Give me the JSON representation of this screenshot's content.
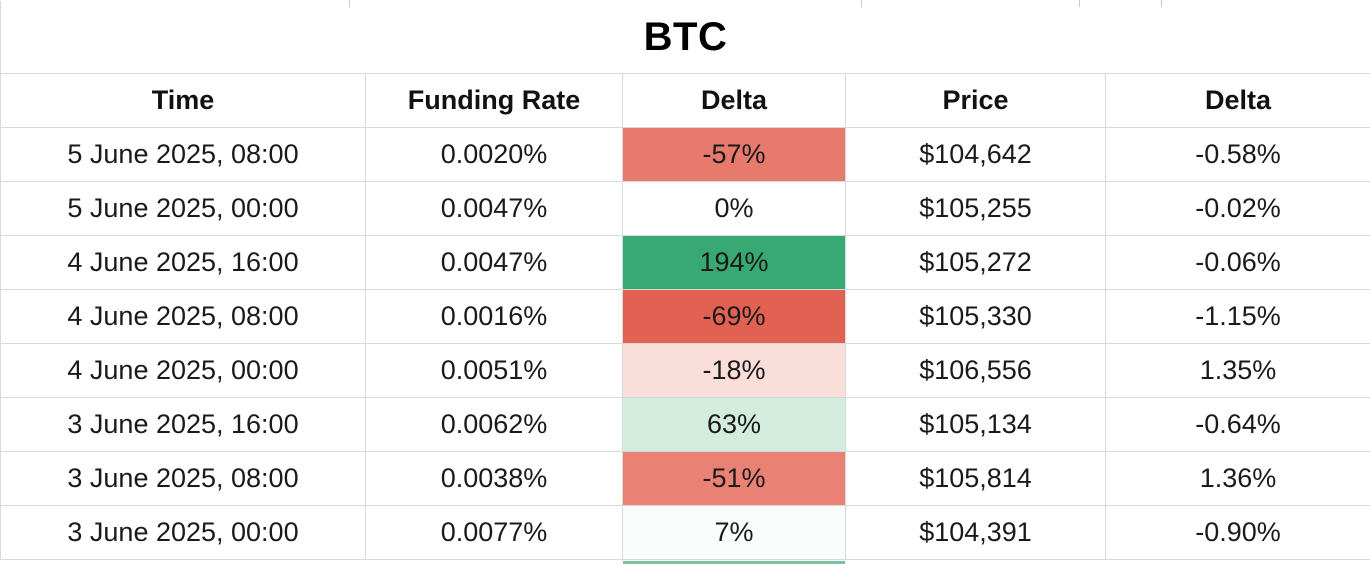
{
  "title": "BTC",
  "chart_data": {
    "type": "table",
    "title": "BTC",
    "columns": [
      "Time",
      "Funding Rate",
      "Delta",
      "Price",
      "Delta"
    ],
    "rows": [
      {
        "time": "5 June 2025, 08:00",
        "funding_rate": "0.0020%",
        "funding_delta": "-57%",
        "funding_delta_bg": "#E8796D",
        "price": "$104,642",
        "price_delta": "-0.58%"
      },
      {
        "time": "5 June 2025, 00:00",
        "funding_rate": "0.0047%",
        "funding_delta": "0%",
        "funding_delta_bg": "#FFFFFF",
        "price": "$105,255",
        "price_delta": "-0.02%"
      },
      {
        "time": "4 June 2025, 16:00",
        "funding_rate": "0.0047%",
        "funding_delta": "194%",
        "funding_delta_bg": "#39A974",
        "price": "$105,272",
        "price_delta": "-0.06%"
      },
      {
        "time": "4 June 2025, 08:00",
        "funding_rate": "0.0016%",
        "funding_delta": "-69%",
        "funding_delta_bg": "#E16253",
        "price": "$105,330",
        "price_delta": "-1.15%"
      },
      {
        "time": "4 June 2025, 00:00",
        "funding_rate": "0.0051%",
        "funding_delta": "-18%",
        "funding_delta_bg": "#F9DEDA",
        "price": "$106,556",
        "price_delta": "1.35%"
      },
      {
        "time": "3 June 2025, 16:00",
        "funding_rate": "0.0062%",
        "funding_delta": "63%",
        "funding_delta_bg": "#D2ECDE",
        "price": "$105,134",
        "price_delta": "-0.64%"
      },
      {
        "time": "3 June 2025, 08:00",
        "funding_rate": "0.0038%",
        "funding_delta": "-51%",
        "funding_delta_bg": "#EA8175",
        "price": "$105,814",
        "price_delta": "1.36%"
      },
      {
        "time": "3 June 2025, 00:00",
        "funding_rate": "0.0077%",
        "funding_delta": "7%",
        "funding_delta_bg": "#FBFDFC",
        "price": "$104,391",
        "price_delta": "-0.90%"
      }
    ],
    "layout": {
      "gridlines": true,
      "delta_color_scale": {
        "negative": "#E16253",
        "neutral": "#FFFFFF",
        "positive": "#39A974"
      }
    }
  }
}
